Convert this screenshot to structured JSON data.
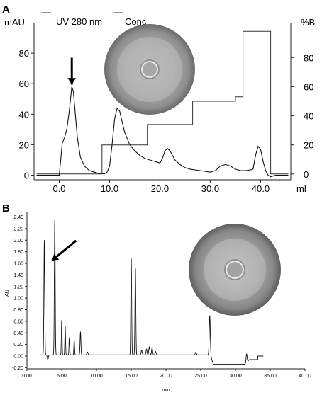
{
  "panels": {
    "a_label": "A",
    "b_label": "B"
  },
  "chart_data": [
    {
      "type": "line",
      "panel": "A",
      "y_left_label": "mAU",
      "y_right_label": "%B",
      "x_unit_label": "ml",
      "legend": [
        "UV 280 nm",
        "Conc"
      ],
      "legend_placement": "top",
      "xlim": [
        -5,
        46
      ],
      "ylim_left": [
        -3,
        100
      ],
      "ylim_right": [
        -4,
        104
      ],
      "x_ticks": [
        0,
        10,
        20,
        30,
        40
      ],
      "x_tick_labels": [
        "0.0",
        "10.0",
        "20.0",
        "30.0",
        "40.0"
      ],
      "y_left_ticks": [
        0,
        20,
        40,
        60,
        80
      ],
      "y_left_tick_labels": [
        "0",
        "20",
        "40",
        "60",
        "80"
      ],
      "y_right_ticks": [
        0,
        20,
        40,
        60,
        80
      ],
      "y_right_tick_labels": [
        "0",
        "20",
        "40",
        "60",
        "80"
      ],
      "grid": false,
      "series": [
        {
          "name": "UV 280 nm",
          "axis": "left",
          "x": [
            -4.5,
            0,
            0.3,
            0.6,
            1.0,
            1.5,
            2.0,
            2.5,
            2.8,
            3.2,
            3.6,
            4.2,
            5.0,
            6.0,
            7.0,
            8.0,
            9.0,
            9.5,
            10.0,
            10.5,
            11.0,
            11.5,
            12.0,
            12.5,
            13.0,
            14.0,
            15.0,
            16.0,
            17.0,
            18.0,
            19.0,
            20.0,
            20.5,
            21.0,
            21.5,
            22.0,
            22.5,
            23.0,
            24.0,
            25.0,
            26.0,
            27.0,
            28.0,
            29.0,
            30.0,
            31.0,
            32.0,
            33.0,
            34.0,
            35.0,
            36.0,
            37.0,
            38.0,
            38.5,
            39.0,
            39.5,
            40.0,
            40.5,
            41.0,
            41.5,
            42.0,
            43.0,
            44.0,
            45.5
          ],
          "y": [
            0,
            0,
            10,
            21,
            24,
            30,
            42,
            58,
            55,
            40,
            25,
            12,
            6,
            3,
            2,
            1,
            1,
            2,
            6,
            20,
            37,
            44,
            42,
            35,
            28,
            20,
            16,
            13,
            11,
            10,
            9,
            8,
            11,
            16,
            17.5,
            16,
            13,
            10,
            7,
            5,
            4,
            3.5,
            3,
            2.5,
            2,
            3,
            6,
            7,
            6,
            4,
            3,
            3,
            3.5,
            4,
            13,
            19,
            17,
            9,
            3,
            0,
            -1,
            0,
            0,
            0
          ]
        },
        {
          "name": "Conc",
          "axis": "right",
          "x": [
            -4.5,
            8.5,
            8.5,
            17.5,
            17.5,
            26.5,
            26.5,
            35.0,
            35.0,
            36.5,
            36.5,
            42.0,
            42.0,
            45.5
          ],
          "y": [
            0,
            0,
            20,
            20,
            34,
            34,
            50,
            50,
            53,
            53,
            98,
            98,
            0,
            0
          ]
        }
      ],
      "annotations": [
        {
          "type": "arrow",
          "x": 2.5,
          "y": 58
        }
      ]
    },
    {
      "type": "line",
      "panel": "B",
      "ylabel": "AU",
      "xlabel": "min",
      "xlim": [
        0,
        40
      ],
      "ylim": [
        -0.22,
        2.48
      ],
      "x_ticks": [
        0,
        5,
        10,
        15,
        20,
        25,
        30,
        35,
        40
      ],
      "x_tick_labels": [
        "0.00",
        "5.00",
        "10.00",
        "15.00",
        "20.00",
        "25.00",
        "30.00",
        "35.00",
        "40.00"
      ],
      "y_ticks": [
        -0.2,
        0,
        0.2,
        0.4,
        0.6,
        0.8,
        1.0,
        1.2,
        1.4,
        1.6,
        1.8,
        2.0,
        2.2,
        2.4
      ],
      "y_tick_labels": [
        "-0.20",
        "0.00",
        "0.20",
        "0.40",
        "0.60",
        "0.80",
        "1.00",
        "1.20",
        "1.40",
        "1.60",
        "1.80",
        "2.00",
        "2.20",
        "2.40"
      ],
      "grid": false,
      "series": [
        {
          "name": "",
          "baseline": 0.02,
          "peaks": [
            {
              "t": 2.5,
              "h": 1.98,
              "w": 0.12
            },
            {
              "t": 3.0,
              "h": -0.08,
              "w": 0.15
            },
            {
              "t": 4.0,
              "h": 2.33,
              "w": 0.12
            },
            {
              "t": 5.0,
              "h": 0.6,
              "w": 0.1
            },
            {
              "t": 5.5,
              "h": 0.5,
              "w": 0.1
            },
            {
              "t": 6.1,
              "h": 0.3,
              "w": 0.1
            },
            {
              "t": 6.8,
              "h": 0.25,
              "w": 0.1
            },
            {
              "t": 7.7,
              "h": 0.4,
              "w": 0.12
            },
            {
              "t": 8.7,
              "h": 0.05,
              "w": 0.15
            },
            {
              "t": 15.0,
              "h": 1.68,
              "w": 0.12
            },
            {
              "t": 15.6,
              "h": 1.5,
              "w": 0.12
            },
            {
              "t": 16.5,
              "h": 0.08,
              "w": 0.15
            },
            {
              "t": 17.2,
              "h": 0.1,
              "w": 0.15
            },
            {
              "t": 17.6,
              "h": 0.14,
              "w": 0.15
            },
            {
              "t": 18.0,
              "h": 0.12,
              "w": 0.15
            },
            {
              "t": 18.5,
              "h": 0.06,
              "w": 0.15
            },
            {
              "t": 24.3,
              "h": 0.05,
              "w": 0.15
            },
            {
              "t": 26.3,
              "h": 0.68,
              "w": 0.15
            },
            {
              "t": 31.6,
              "h": 0.15,
              "w": 0.15
            }
          ],
          "drift_segments": [
            {
              "from": 0,
              "to": 26.4,
              "level": 0.02
            },
            {
              "from": 26.8,
              "to": 31.4,
              "level": -0.14
            },
            {
              "from": 32.0,
              "to": 33.2,
              "level": -0.06
            },
            {
              "from": 33.2,
              "to": 40,
              "level": 0.0
            }
          ]
        }
      ],
      "annotations": [
        {
          "type": "arrow",
          "x": 3.6,
          "y": 1.65
        }
      ]
    }
  ]
}
